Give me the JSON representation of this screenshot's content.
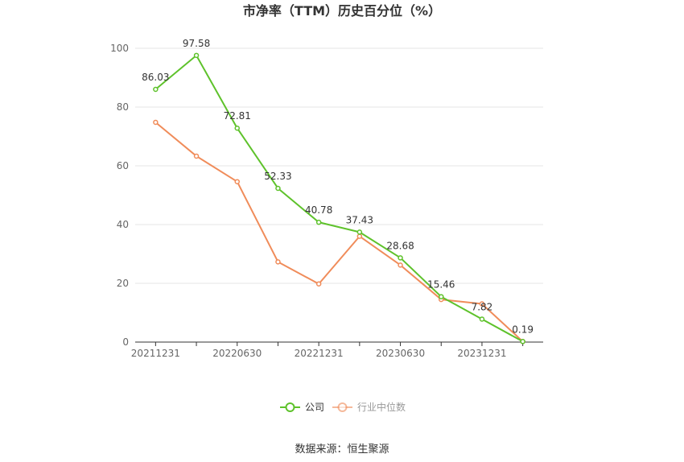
{
  "chart_data": {
    "type": "line",
    "title": "市净率（TTM）历史百分位（%）",
    "xlabel": "",
    "ylabel": "",
    "x": [
      "20211231",
      "20220331",
      "20220630",
      "20220930",
      "20221231",
      "20230331",
      "20230630",
      "20230930",
      "20231231",
      "20240331"
    ],
    "x_tick_labels": [
      "20211231",
      "20220630",
      "20221231",
      "20230630",
      "20231231"
    ],
    "y_ticks": [
      "0",
      "20",
      "40",
      "60",
      "80",
      "100"
    ],
    "ylim": [
      0,
      100
    ],
    "grid": true,
    "legend_position": "bottom",
    "series": [
      {
        "name": "公司",
        "color": "#5ec22b",
        "values": [
          86.03,
          97.58,
          72.81,
          52.33,
          40.78,
          37.43,
          28.68,
          15.46,
          7.82,
          0.19
        ],
        "labels": [
          "86.03",
          "97.58",
          "72.81",
          "52.33",
          "40.78",
          "37.43",
          "28.68",
          "15.46",
          "7.82",
          "0.19"
        ]
      },
      {
        "name": "行业中位数",
        "color": "#f08c5a",
        "values": [
          74.8,
          63.3,
          54.6,
          27.3,
          19.8,
          36.0,
          26.2,
          14.5,
          13.0,
          0.19
        ]
      }
    ]
  },
  "source_text": "数据来源：恒生聚源"
}
